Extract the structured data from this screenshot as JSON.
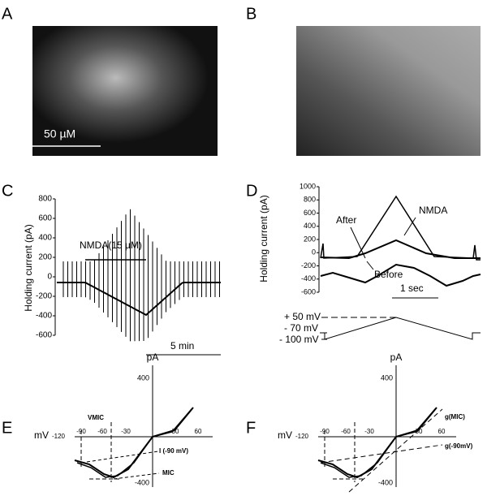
{
  "panels": [
    {
      "label": "A",
      "scale_bar": "50 µM"
    },
    {
      "label": "B"
    },
    {
      "label": "C",
      "y_label": "Holding current (pA)",
      "yticks": [
        "800",
        "600",
        "400",
        "200",
        "0",
        "-200",
        "-400",
        "-600"
      ],
      "annotations": [
        "NMDA(15 µM)"
      ],
      "scale_bar": "5 min"
    },
    {
      "label": "D",
      "y_label": "Holding current (pA)",
      "yticks": [
        "1000",
        "800",
        "600",
        "400",
        "200",
        "0",
        "-200",
        "-400",
        "-600"
      ],
      "annotations": [
        "NMDA",
        "After",
        "Before"
      ],
      "scale_bar": "1 sec",
      "protocol": [
        "+ 50 mV",
        "- 70 mV",
        "- 100 mV"
      ]
    },
    {
      "label": "E",
      "y_label": "pA",
      "x_label": "mV",
      "yticks": [
        "400",
        "-400"
      ],
      "xticks": [
        "-120",
        "-90",
        "-60",
        "-30",
        "30",
        "60"
      ],
      "annotations": [
        "VMIC",
        "I (-90 mV)",
        "MIC"
      ]
    },
    {
      "label": "F",
      "y_label": "pA",
      "x_label": "mV",
      "yticks": [
        "400",
        "-400"
      ],
      "xticks": [
        "-120",
        "-90",
        "-60",
        "-30",
        "30",
        "60"
      ],
      "annotations": [
        "g(MIC)",
        "g(-90mV)"
      ]
    }
  ]
}
